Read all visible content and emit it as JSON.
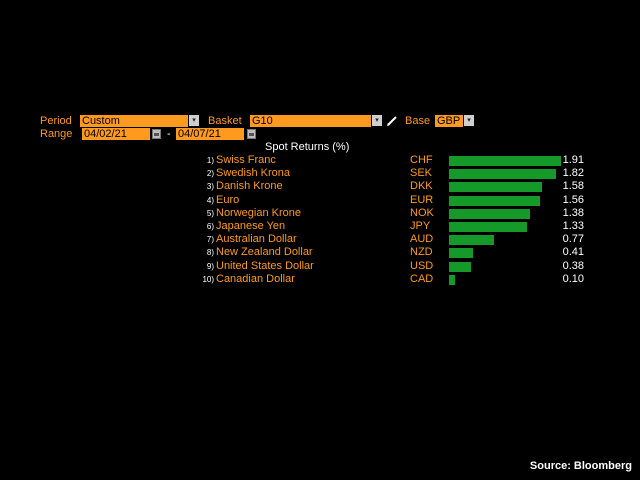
{
  "controls": {
    "period_label": "Period",
    "period_value": "Custom",
    "basket_label": "Basket",
    "basket_value": "G10",
    "base_label": "Base",
    "base_value": "GBP",
    "range_label": "Range",
    "range_start": "04/02/21",
    "range_sep": "-",
    "range_end": "04/07/21",
    "dropdown_glyph": "▾"
  },
  "icons": {
    "edit": "pencil-icon",
    "calendar": "calendar-icon",
    "dropdown": "chevron-down-icon"
  },
  "colors": {
    "accent": "#ff9a1f",
    "bar": "#159a2a",
    "background": "#000000"
  },
  "table_title": "Spot Returns (%)",
  "chart_data": {
    "type": "bar",
    "title": "Spot Returns (%)",
    "categories": [
      "Swiss Franc",
      "Swedish Krona",
      "Danish Krone",
      "Euro",
      "Norwegian Krone",
      "Japanese Yen",
      "Australian Dollar",
      "New Zealand Dollar",
      "United States Dollar",
      "Canadian Dollar"
    ],
    "codes": [
      "CHF",
      "SEK",
      "DKK",
      "EUR",
      "NOK",
      "JPY",
      "AUD",
      "NZD",
      "USD",
      "CAD"
    ],
    "values": [
      1.91,
      1.82,
      1.58,
      1.56,
      1.38,
      1.33,
      0.77,
      0.41,
      0.38,
      0.1
    ],
    "value_labels": [
      "1.91",
      "1.82",
      "1.58",
      "1.56",
      "1.38",
      "1.33",
      "0.77",
      "0.41",
      "0.38",
      "0.10"
    ],
    "ranks": [
      "1)",
      "2)",
      "3)",
      "4)",
      "5)",
      "6)",
      "7)",
      "8)",
      "9)",
      "10)"
    ],
    "orientation": "horizontal",
    "xlim": [
      0,
      1.91
    ]
  },
  "footer": {
    "source": "Source: Bloomberg"
  }
}
